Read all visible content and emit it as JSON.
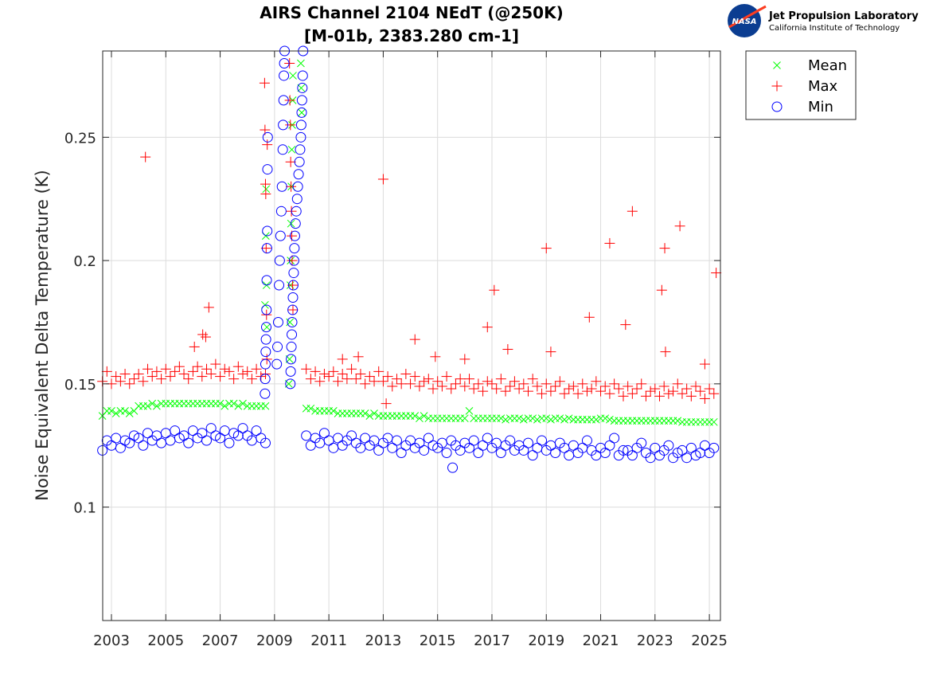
{
  "chart_data": {
    "type": "scatter",
    "title": [
      "AIRS Channel 2104 NEdT (@250K)",
      "[M-01b, 2383.280 cm-1]"
    ],
    "xlabel": "",
    "ylabel": "Noise Equivalent Delta Temperature (K)",
    "xlim": [
      "2002-09-05",
      "2025-05-28"
    ],
    "ylim": [
      0.054,
      0.285
    ],
    "xticks": [
      "2003",
      "2005",
      "2007",
      "2009",
      "2011",
      "2013",
      "2015",
      "2017",
      "2019",
      "2021",
      "2023",
      "2025"
    ],
    "yticks": [
      "0.1",
      "0.15",
      "0.2",
      "0.25"
    ],
    "grid": true,
    "legend_placement": "outside-top-right",
    "logo": {
      "line1": "Jet Propulsion Laboratory",
      "line2": "California Institute of Technology",
      "badge": "NASA"
    },
    "x": [
      "2002-09",
      "2002-11",
      "2003-01",
      "2003-03",
      "2003-05",
      "2003-07",
      "2003-09",
      "2003-11",
      "2004-01",
      "2004-03",
      "2004-05",
      "2004-07",
      "2004-09",
      "2004-11",
      "2005-01",
      "2005-03",
      "2005-05",
      "2005-07",
      "2005-09",
      "2005-11",
      "2006-01",
      "2006-03",
      "2006-05",
      "2006-07",
      "2006-09",
      "2006-11",
      "2007-01",
      "2007-03",
      "2007-05",
      "2007-07",
      "2007-09",
      "2007-11",
      "2008-01",
      "2008-03",
      "2008-05",
      "2008-07",
      "2008-09",
      "2010-03",
      "2010-05",
      "2010-07",
      "2010-09",
      "2010-11",
      "2011-01",
      "2011-03",
      "2011-05",
      "2011-07",
      "2011-09",
      "2011-11",
      "2012-01",
      "2012-03",
      "2012-05",
      "2012-07",
      "2012-09",
      "2012-11",
      "2013-01",
      "2013-03",
      "2013-05",
      "2013-07",
      "2013-09",
      "2013-11",
      "2014-01",
      "2014-03",
      "2014-05",
      "2014-07",
      "2014-09",
      "2014-11",
      "2015-01",
      "2015-03",
      "2015-05",
      "2015-07",
      "2015-09",
      "2015-11",
      "2016-01",
      "2016-03",
      "2016-05",
      "2016-07",
      "2016-09",
      "2016-11",
      "2017-01",
      "2017-03",
      "2017-05",
      "2017-07",
      "2017-09",
      "2017-11",
      "2018-01",
      "2018-03",
      "2018-05",
      "2018-07",
      "2018-09",
      "2018-11",
      "2019-01",
      "2019-03",
      "2019-05",
      "2019-07",
      "2019-09",
      "2019-11",
      "2020-01",
      "2020-03",
      "2020-05",
      "2020-07",
      "2020-09",
      "2020-11",
      "2021-01",
      "2021-03",
      "2021-05",
      "2021-07",
      "2021-09",
      "2021-11",
      "2022-01",
      "2022-03",
      "2022-05",
      "2022-07",
      "2022-09",
      "2022-11",
      "2023-01",
      "2023-03",
      "2023-05",
      "2023-07",
      "2023-09",
      "2023-11",
      "2024-01",
      "2024-03",
      "2024-05",
      "2024-07",
      "2024-09",
      "2024-11",
      "2025-01",
      "2025-03"
    ],
    "series": [
      {
        "name": "Mean",
        "color": "#00ff00",
        "marker": "x",
        "values": [
          0.137,
          0.139,
          0.139,
          0.138,
          0.139,
          0.139,
          0.138,
          0.139,
          0.141,
          0.141,
          0.141,
          0.142,
          0.141,
          0.142,
          0.142,
          0.142,
          0.142,
          0.142,
          0.142,
          0.142,
          0.142,
          0.142,
          0.142,
          0.142,
          0.142,
          0.142,
          0.142,
          0.141,
          0.142,
          0.142,
          0.141,
          0.142,
          0.141,
          0.141,
          0.141,
          0.141,
          0.141,
          0.14,
          0.14,
          0.139,
          0.139,
          0.139,
          0.139,
          0.139,
          0.138,
          0.138,
          0.138,
          0.138,
          0.138,
          0.138,
          0.138,
          0.137,
          0.138,
          0.137,
          0.137,
          0.137,
          0.137,
          0.137,
          0.137,
          0.137,
          0.137,
          0.137,
          0.136,
          0.137,
          0.136,
          0.136,
          0.136,
          0.136,
          0.136,
          0.136,
          0.136,
          0.136,
          0.136,
          0.139,
          0.136,
          0.136,
          0.136,
          0.136,
          0.136,
          0.136,
          0.136,
          0.1355,
          0.136,
          0.136,
          0.136,
          0.1355,
          0.136,
          0.136,
          0.1355,
          0.136,
          0.136,
          0.1355,
          0.136,
          0.136,
          0.1355,
          0.136,
          0.1355,
          0.1355,
          0.1355,
          0.1355,
          0.1355,
          0.1355,
          0.136,
          0.136,
          0.1355,
          0.135,
          0.135,
          0.135,
          0.135,
          0.135,
          0.135,
          0.135,
          0.135,
          0.135,
          0.135,
          0.135,
          0.135,
          0.135,
          0.135,
          0.135,
          0.1345,
          0.1345,
          0.1345,
          0.1345,
          0.1345,
          0.1345,
          0.1345,
          0.1345
        ],
        "extra_points": [
          [
            "2008-08-25",
            0.182
          ],
          [
            "2008-09-05",
            0.21
          ],
          [
            "2008-09-10",
            0.229
          ],
          [
            "2008-09-15",
            0.19
          ],
          [
            "2008-09-20",
            0.173
          ],
          [
            "2009-07-10",
            0.15
          ],
          [
            "2009-07-20",
            0.16
          ],
          [
            "2009-07-25",
            0.175
          ],
          [
            "2009-08-01",
            0.19
          ],
          [
            "2009-08-05",
            0.2
          ],
          [
            "2009-08-10",
            0.215
          ],
          [
            "2009-08-15",
            0.23
          ],
          [
            "2009-08-20",
            0.245
          ],
          [
            "2009-08-25",
            0.255
          ],
          [
            "2009-09-01",
            0.265
          ],
          [
            "2009-09-05",
            0.275
          ],
          [
            "2009-12-20",
            0.28
          ],
          [
            "2009-12-25",
            0.27
          ],
          [
            "2010-01-01",
            0.26
          ]
        ]
      },
      {
        "name": "Max",
        "color": "#ff0000",
        "marker": "+",
        "values": [
          0.151,
          0.155,
          0.15,
          0.153,
          0.151,
          0.154,
          0.15,
          0.152,
          0.154,
          0.151,
          0.156,
          0.153,
          0.155,
          0.152,
          0.156,
          0.153,
          0.155,
          0.157,
          0.154,
          0.152,
          0.155,
          0.157,
          0.153,
          0.156,
          0.154,
          0.158,
          0.153,
          0.156,
          0.155,
          0.152,
          0.157,
          0.154,
          0.155,
          0.152,
          0.156,
          0.153,
          0.154,
          0.156,
          0.152,
          0.155,
          0.151,
          0.154,
          0.153,
          0.155,
          0.151,
          0.154,
          0.152,
          0.156,
          0.152,
          0.154,
          0.15,
          0.153,
          0.151,
          0.155,
          0.151,
          0.153,
          0.149,
          0.152,
          0.15,
          0.154,
          0.15,
          0.153,
          0.149,
          0.151,
          0.152,
          0.148,
          0.151,
          0.149,
          0.153,
          0.148,
          0.15,
          0.152,
          0.149,
          0.152,
          0.148,
          0.15,
          0.147,
          0.151,
          0.15,
          0.148,
          0.152,
          0.147,
          0.149,
          0.151,
          0.148,
          0.15,
          0.147,
          0.152,
          0.149,
          0.146,
          0.15,
          0.147,
          0.149,
          0.151,
          0.146,
          0.148,
          0.149,
          0.146,
          0.15,
          0.147,
          0.148,
          0.151,
          0.147,
          0.149,
          0.146,
          0.15,
          0.148,
          0.145,
          0.149,
          0.146,
          0.148,
          0.15,
          0.145,
          0.147,
          0.148,
          0.145,
          0.149,
          0.146,
          0.147,
          0.15,
          0.146,
          0.148,
          0.145,
          0.149,
          0.147,
          0.144,
          0.148,
          0.146
        ],
        "extra_points": [
          [
            "2004-04-01",
            0.242
          ],
          [
            "2006-01-20",
            0.165
          ],
          [
            "2006-05-10",
            0.17
          ],
          [
            "2006-06-20",
            0.169
          ],
          [
            "2006-08-01",
            0.181
          ],
          [
            "2011-07-01",
            0.16
          ],
          [
            "2012-02-01",
            0.161
          ],
          [
            "2013-01-01",
            0.233
          ],
          [
            "2013-02-10",
            0.142
          ],
          [
            "2014-03-01",
            0.168
          ],
          [
            "2014-12-01",
            0.161
          ],
          [
            "2016-01-01",
            0.16
          ],
          [
            "2016-11-01",
            0.173
          ],
          [
            "2017-02-01",
            0.188
          ],
          [
            "2017-08-01",
            0.164
          ],
          [
            "2019-01-01",
            0.205
          ],
          [
            "2019-03-01",
            0.163
          ],
          [
            "2020-08-01",
            0.177
          ],
          [
            "2021-05-01",
            0.207
          ],
          [
            "2021-12-01",
            0.174
          ],
          [
            "2022-03-01",
            0.22
          ],
          [
            "2023-04-01",
            0.188
          ],
          [
            "2023-05-10",
            0.205
          ],
          [
            "2023-05-20",
            0.163
          ],
          [
            "2023-12-01",
            0.214
          ],
          [
            "2024-11-01",
            0.158
          ],
          [
            "2025-04-01",
            0.195
          ],
          [
            "2008-08-20",
            0.272
          ],
          [
            "2008-08-25",
            0.253
          ],
          [
            "2008-09-01",
            0.231
          ],
          [
            "2008-09-05",
            0.227
          ],
          [
            "2008-09-10",
            0.205
          ],
          [
            "2008-09-15",
            0.178
          ],
          [
            "2008-09-20",
            0.16
          ],
          [
            "2008-09-25",
            0.247
          ],
          [
            "2009-07-20",
            0.28
          ],
          [
            "2009-07-25",
            0.265
          ],
          [
            "2009-08-01",
            0.255
          ],
          [
            "2009-08-05",
            0.24
          ],
          [
            "2009-08-10",
            0.23
          ],
          [
            "2009-08-15",
            0.22
          ],
          [
            "2009-08-20",
            0.21
          ],
          [
            "2009-08-25",
            0.2
          ],
          [
            "2009-09-01",
            0.19
          ],
          [
            "2009-09-05",
            0.18
          ]
        ]
      },
      {
        "name": "Min",
        "color": "#0000ff",
        "marker": "o",
        "values": [
          0.123,
          0.127,
          0.125,
          0.128,
          0.124,
          0.127,
          0.126,
          0.129,
          0.128,
          0.125,
          0.13,
          0.127,
          0.129,
          0.126,
          0.13,
          0.127,
          0.131,
          0.128,
          0.129,
          0.126,
          0.131,
          0.128,
          0.13,
          0.127,
          0.132,
          0.129,
          0.128,
          0.131,
          0.126,
          0.13,
          0.129,
          0.132,
          0.129,
          0.127,
          0.131,
          0.128,
          0.126,
          0.129,
          0.125,
          0.128,
          0.126,
          0.13,
          0.127,
          0.124,
          0.128,
          0.125,
          0.127,
          0.129,
          0.126,
          0.124,
          0.128,
          0.125,
          0.127,
          0.123,
          0.126,
          0.128,
          0.124,
          0.127,
          0.122,
          0.125,
          0.127,
          0.124,
          0.126,
          0.123,
          0.128,
          0.125,
          0.124,
          0.126,
          0.122,
          0.127,
          0.125,
          0.123,
          0.126,
          0.124,
          0.127,
          0.122,
          0.125,
          0.128,
          0.124,
          0.126,
          0.122,
          0.125,
          0.127,
          0.123,
          0.125,
          0.123,
          0.126,
          0.121,
          0.124,
          0.127,
          0.123,
          0.125,
          0.122,
          0.126,
          0.124,
          0.121,
          0.125,
          0.122,
          0.124,
          0.127,
          0.123,
          0.121,
          0.124,
          0.122,
          0.125,
          0.128,
          0.121,
          0.123,
          0.123,
          0.121,
          0.124,
          0.126,
          0.122,
          0.12,
          0.124,
          0.121,
          0.123,
          0.125,
          0.12,
          0.122,
          0.123,
          0.12,
          0.124,
          0.121,
          0.122,
          0.125,
          0.122,
          0.124
        ],
        "extra_points": [
          [
            "2015-07-20",
            0.116
          ],
          [
            "2008-08-25",
            0.146
          ],
          [
            "2008-08-28",
            0.152
          ],
          [
            "2008-09-01",
            0.158
          ],
          [
            "2008-09-05",
            0.163
          ],
          [
            "2008-09-08",
            0.168
          ],
          [
            "2008-09-12",
            0.173
          ],
          [
            "2008-09-15",
            0.18
          ],
          [
            "2008-09-18",
            0.192
          ],
          [
            "2008-09-22",
            0.205
          ],
          [
            "2008-09-25",
            0.212
          ],
          [
            "2008-09-28",
            0.237
          ],
          [
            "2008-10-01",
            0.25
          ],
          [
            "2009-02-01",
            0.158
          ],
          [
            "2009-02-10",
            0.165
          ],
          [
            "2009-02-20",
            0.175
          ],
          [
            "2009-03-01",
            0.19
          ],
          [
            "2009-03-10",
            0.2
          ],
          [
            "2009-03-20",
            0.21
          ],
          [
            "2009-04-01",
            0.22
          ],
          [
            "2009-04-10",
            0.23
          ],
          [
            "2009-04-20",
            0.245
          ],
          [
            "2009-04-25",
            0.255
          ],
          [
            "2009-05-01",
            0.265
          ],
          [
            "2009-05-05",
            0.275
          ],
          [
            "2009-05-10",
            0.28
          ],
          [
            "2009-05-15",
            0.285
          ],
          [
            "2009-08-01",
            0.15
          ],
          [
            "2009-08-05",
            0.155
          ],
          [
            "2009-08-10",
            0.16
          ],
          [
            "2009-08-15",
            0.165
          ],
          [
            "2009-08-20",
            0.17
          ],
          [
            "2009-08-25",
            0.175
          ],
          [
            "2009-09-01",
            0.18
          ],
          [
            "2009-09-05",
            0.185
          ],
          [
            "2009-09-10",
            0.19
          ],
          [
            "2009-09-15",
            0.195
          ],
          [
            "2009-09-20",
            0.2
          ],
          [
            "2009-09-25",
            0.205
          ],
          [
            "2009-10-01",
            0.21
          ],
          [
            "2009-10-10",
            0.215
          ],
          [
            "2009-10-20",
            0.22
          ],
          [
            "2009-11-01",
            0.225
          ],
          [
            "2009-11-10",
            0.23
          ],
          [
            "2009-11-20",
            0.235
          ],
          [
            "2009-12-01",
            0.24
          ],
          [
            "2009-12-10",
            0.245
          ],
          [
            "2009-12-20",
            0.25
          ],
          [
            "2009-12-25",
            0.255
          ],
          [
            "2010-01-01",
            0.26
          ],
          [
            "2010-01-05",
            0.265
          ],
          [
            "2010-01-10",
            0.27
          ],
          [
            "2010-01-15",
            0.275
          ],
          [
            "2010-01-20",
            0.285
          ]
        ]
      }
    ]
  }
}
